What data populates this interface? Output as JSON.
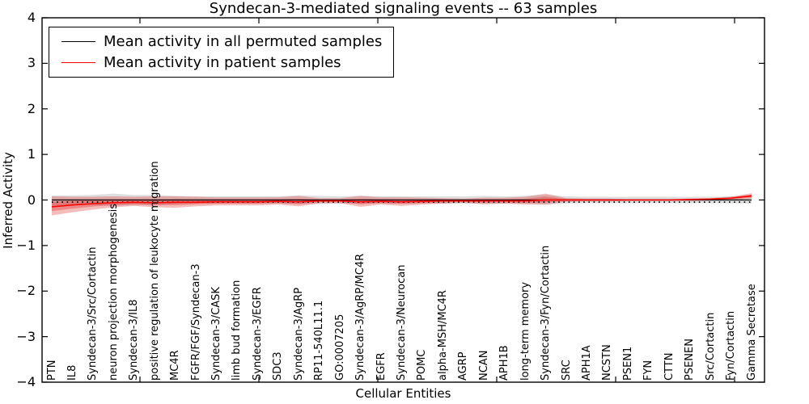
{
  "figure": {
    "title": "Syndecan-3-mediated signaling events -- 63 samples",
    "xlabel": "Cellular Entities",
    "ylabel": "Inferred Activity"
  },
  "legend": {
    "position": "upper left",
    "items": [
      {
        "label": "Mean activity in all permuted samples",
        "color": "#000000"
      },
      {
        "label": "Mean activity in patient samples",
        "color": "#ff0000"
      }
    ]
  },
  "chart_data": {
    "type": "line",
    "title": "Syndecan-3-mediated signaling events -- 63 samples",
    "xlabel": "Cellular Entities",
    "ylabel": "Inferred Activity",
    "ylim": [
      -4,
      4
    ],
    "yticks": [
      -4,
      -3,
      -2,
      -1,
      0,
      1,
      2,
      3,
      4
    ],
    "grid": false,
    "legend_position": "upper left",
    "categories": [
      "PTN",
      "IL8",
      "Syndecan-3/Src/Cortactin",
      "neuron projection morphogenesis",
      "Syndecan-3/IL8",
      "positive regulation of leukocyte migration",
      "MC4R",
      "FGFR/FGF/Syndecan-3",
      "Syndecan-3/CASK",
      "limb bud formation",
      "Syndecan-3/EGFR",
      "SDC3",
      "Syndecan-3/AgRP",
      "RP11-540L11.1",
      "GO:0007205",
      "Syndecan-3/AgRP/MC4R",
      "EGFR",
      "Syndecan-3/Neurocan",
      "POMC",
      "alpha-MSH/MC4R",
      "AGRP",
      "NCAN",
      "APH1B",
      "long-term memory",
      "Syndecan-3/Fyn/Cortactin",
      "SRC",
      "APH1A",
      "NCSTN",
      "PSEN1",
      "FYN",
      "CTTN",
      "PSENEN",
      "Src/Cortactin",
      "Fyn/Cortactin",
      "Gamma Secretase"
    ],
    "series": [
      {
        "name": "Mean activity in all permuted samples",
        "color": "#000000",
        "values": [
          0,
          0,
          0,
          0,
          0,
          0,
          0,
          0,
          0,
          0,
          0,
          0,
          0,
          0,
          0,
          0,
          0,
          0,
          0,
          0,
          0,
          0,
          0,
          0,
          0,
          0,
          0,
          0,
          0,
          0,
          0,
          0,
          0,
          0,
          0
        ]
      },
      {
        "name": "Mean activity in patient samples",
        "color": "#ff0000",
        "values": [
          -0.15,
          -0.11,
          -0.08,
          -0.06,
          -0.05,
          -0.06,
          -0.05,
          -0.05,
          -0.04,
          -0.04,
          -0.04,
          -0.03,
          -0.04,
          -0.02,
          -0.02,
          -0.04,
          -0.03,
          -0.04,
          -0.03,
          -0.02,
          -0.02,
          -0.02,
          -0.02,
          -0.02,
          0.0,
          0.0,
          0.0,
          0.0,
          0.0,
          0.0,
          0.0,
          0.01,
          0.02,
          0.04,
          0.09
        ]
      }
    ],
    "bands": [
      {
        "name": "permuted samples range",
        "color": "#969696",
        "opacity": 0.3,
        "lower": [
          -0.12,
          -0.11,
          -0.11,
          -0.13,
          -0.11,
          -0.11,
          -0.09,
          -0.08,
          -0.08,
          -0.08,
          -0.08,
          -0.08,
          -0.09,
          -0.09,
          -0.08,
          -0.08,
          -0.08,
          -0.08,
          -0.08,
          -0.08,
          -0.08,
          -0.09,
          -0.08,
          -0.08,
          -0.1,
          -0.08,
          -0.07,
          -0.07,
          -0.07,
          -0.07,
          -0.07,
          -0.07,
          -0.07,
          -0.07,
          -0.08
        ],
        "upper": [
          0.1,
          0.1,
          0.11,
          0.14,
          0.11,
          0.11,
          0.09,
          0.08,
          0.08,
          0.08,
          0.08,
          0.08,
          0.1,
          0.09,
          0.08,
          0.09,
          0.08,
          0.08,
          0.08,
          0.08,
          0.08,
          0.09,
          0.08,
          0.09,
          0.11,
          0.08,
          0.07,
          0.07,
          0.07,
          0.07,
          0.07,
          0.07,
          0.07,
          0.08,
          0.1
        ]
      },
      {
        "name": "patient samples range",
        "color": "#e03030",
        "opacity": 0.32,
        "lower": [
          -0.34,
          -0.27,
          -0.21,
          -0.16,
          -0.13,
          -0.16,
          -0.17,
          -0.14,
          -0.12,
          -0.12,
          -0.12,
          -0.1,
          -0.14,
          -0.07,
          -0.07,
          -0.15,
          -0.1,
          -0.13,
          -0.1,
          -0.08,
          -0.06,
          -0.09,
          -0.08,
          -0.1,
          -0.1,
          -0.04,
          -0.03,
          -0.03,
          -0.02,
          -0.02,
          -0.02,
          -0.02,
          -0.01,
          0.0,
          0.03
        ],
        "upper": [
          0.08,
          0.07,
          0.07,
          0.08,
          0.07,
          0.08,
          0.08,
          0.07,
          0.06,
          0.06,
          0.06,
          0.06,
          0.09,
          0.04,
          0.04,
          0.09,
          0.06,
          0.06,
          0.05,
          0.04,
          0.03,
          0.05,
          0.05,
          0.07,
          0.14,
          0.04,
          0.03,
          0.03,
          0.02,
          0.02,
          0.02,
          0.03,
          0.04,
          0.07,
          0.15
        ]
      }
    ]
  }
}
